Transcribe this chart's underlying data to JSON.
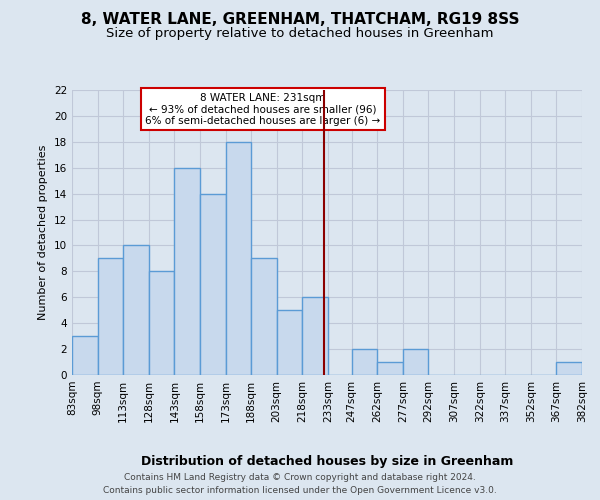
{
  "title": "8, WATER LANE, GREENHAM, THATCHAM, RG19 8SS",
  "subtitle": "Size of property relative to detached houses in Greenham",
  "xlabel": "Distribution of detached houses by size in Greenham",
  "ylabel": "Number of detached properties",
  "bin_edges": [
    83,
    98,
    113,
    128,
    143,
    158,
    173,
    188,
    203,
    218,
    233,
    247,
    262,
    277,
    292,
    307,
    322,
    337,
    352,
    367,
    382
  ],
  "bar_heights": [
    3,
    9,
    10,
    8,
    16,
    14,
    18,
    9,
    5,
    6,
    0,
    2,
    1,
    2,
    0,
    0,
    0,
    0,
    0,
    1
  ],
  "bar_color": "#c8d9ed",
  "bar_edge_color": "#5b9bd5",
  "bar_edge_width": 1.0,
  "vline_x": 231,
  "vline_color": "#8b0000",
  "ylim": [
    0,
    22
  ],
  "yticks": [
    0,
    2,
    4,
    6,
    8,
    10,
    12,
    14,
    16,
    18,
    20,
    22
  ],
  "grid_color": "#c0c8d8",
  "background_color": "#dce6f0",
  "annotation_text": "8 WATER LANE: 231sqm\n← 93% of detached houses are smaller (96)\n6% of semi-detached houses are larger (6) →",
  "annotation_box_color": "#ffffff",
  "annotation_border_color": "#cc0000",
  "footer_line1": "Contains HM Land Registry data © Crown copyright and database right 2024.",
  "footer_line2": "Contains public sector information licensed under the Open Government Licence v3.0.",
  "title_fontsize": 11,
  "subtitle_fontsize": 9.5,
  "xlabel_fontsize": 9,
  "ylabel_fontsize": 8,
  "tick_fontsize": 7.5,
  "footer_fontsize": 6.5,
  "ann_fontsize": 7.5
}
